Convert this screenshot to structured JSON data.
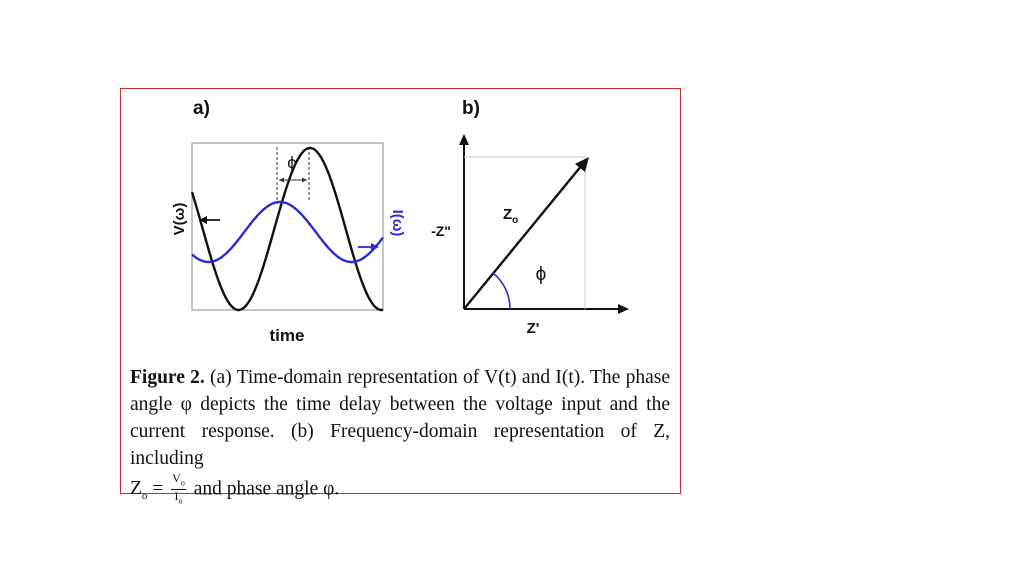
{
  "figure": {
    "panel_a_label": "a)",
    "panel_b_label": "b)",
    "a_ylabel": "V(ω)",
    "a_ylabel2": "I(ω)",
    "a_xlabel": "time",
    "a_phase": "ϕ",
    "b_yaxis": "-Z\"",
    "b_xaxis": "Z'",
    "b_vector": "Z",
    "b_vector_sub": "o",
    "b_angle": "ϕ",
    "colors": {
      "voltage": "#111111",
      "current": "#2b2bd6",
      "frame": "#d42a2a"
    }
  },
  "caption": {
    "fig": "Figure 2.",
    "p1": "(a) Time-domain representation of V(t) and I(t). The phase angle φ depicts the time delay between the voltage input and the current response. (b) Frequency-domain representation of Z, including",
    "z0": "Z",
    "z0_sub": "o",
    "equals": "=",
    "num": "V",
    "num_sub": "o",
    "den": "I",
    "den_sub": "o",
    "p2": "and phase angle φ."
  }
}
